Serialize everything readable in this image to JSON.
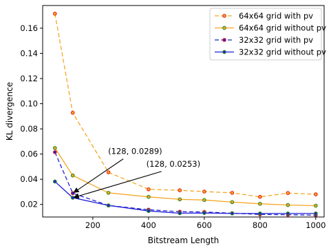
{
  "chart_data": {
    "type": "line",
    "title": "",
    "xlabel": "Bitstream Length",
    "ylabel": "KL divergence",
    "xlim": [
      20,
      1030
    ],
    "ylim": [
      0.01,
      0.178
    ],
    "xticks": [
      200,
      400,
      600,
      800,
      1000
    ],
    "yticks": [
      0.02,
      0.04,
      0.06,
      0.08,
      0.1,
      0.12,
      0.14,
      0.16
    ],
    "ytick_labels": [
      "0.02",
      "0.04",
      "0.06",
      "0.08",
      "0.10",
      "0.12",
      "0.14",
      "0.16"
    ],
    "legend_position": "top-right",
    "grid": false,
    "series": [
      {
        "name": "64x64 grid with pv",
        "color": "#f5a623",
        "dashed": true,
        "marker_edge": "#e8261c",
        "x": [
          64,
          128,
          256,
          400,
          512,
          600,
          700,
          800,
          900,
          1000
        ],
        "y": [
          0.1715,
          0.0928,
          0.0455,
          0.032,
          0.0312,
          0.0302,
          0.0292,
          0.026,
          0.029,
          0.028
        ]
      },
      {
        "name": "64x64 grid without pv",
        "color": "#f5a623",
        "dashed": false,
        "marker_edge": "#2e8b1e",
        "x": [
          64,
          128,
          256,
          400,
          512,
          600,
          700,
          800,
          900,
          1000
        ],
        "y": [
          0.0648,
          0.043,
          0.0292,
          0.026,
          0.024,
          0.0235,
          0.0218,
          0.0205,
          0.0195,
          0.019
        ]
      },
      {
        "name": "32x32 grid with pv",
        "color": "#1f1fd6",
        "dashed": true,
        "marker_edge": "#e8261c",
        "x": [
          64,
          128,
          256,
          400,
          512,
          600,
          700,
          800,
          900,
          1000
        ],
        "y": [
          0.0615,
          0.0289,
          0.0192,
          0.0158,
          0.0142,
          0.014,
          0.013,
          0.012,
          0.0118,
          0.0115
        ]
      },
      {
        "name": "32x32 grid without pv",
        "color": "#1f1fd6",
        "dashed": false,
        "marker_edge": "#2e8b1e",
        "x": [
          64,
          128,
          256,
          400,
          512,
          600,
          700,
          800,
          900,
          1000
        ],
        "y": [
          0.0382,
          0.0253,
          0.0192,
          0.0148,
          0.013,
          0.0132,
          0.0128,
          0.0128,
          0.0128,
          0.0128
        ]
      }
    ],
    "annotations": [
      {
        "text": "(128, 0.0289)",
        "point": [
          128,
          0.0289
        ],
        "text_at": [
          255,
          0.06
        ]
      },
      {
        "text": "(128, 0.0253)",
        "point": [
          128,
          0.0253
        ],
        "text_at": [
          392,
          0.05
        ]
      }
    ]
  }
}
